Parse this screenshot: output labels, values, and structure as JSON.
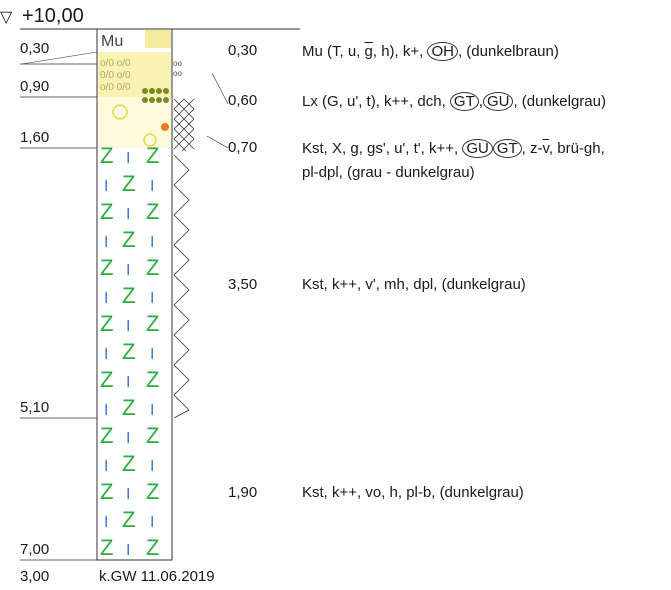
{
  "header": {
    "elevation_symbol": "▽",
    "elevation": "+10,00"
  },
  "depths": [
    "0,30",
    "0,90",
    "1,60",
    "5,10",
    "7,00"
  ],
  "thicknesses": [
    "0,30",
    "0,60",
    "0,70",
    "3,50",
    "1,90"
  ],
  "profile_label": "Mu",
  "layers": [
    {
      "parts": [
        "Mu (T, u, ",
        "g",
        ", h), k+, ",
        "OH",
        ", (dunkelbraun)"
      ]
    },
    {
      "parts": [
        "Lx (G, u', t), k++, dch, ",
        "GT",
        ",",
        "GU",
        ", (dunkelgrau)"
      ]
    },
    {
      "parts": [
        "Kst, X, g, gs', u', t', k++, ",
        "GU",
        "GT",
        ", z-",
        "v",
        ", brü-gh,"
      ],
      "line2": "pl-dpl, (grau - dunkelgrau)"
    },
    {
      "line1": "Kst, k++, v', mh, dpl, (dunkelgrau)"
    },
    {
      "line1": "Kst, k++, vo, h, pl-b, (dunkelgrau)"
    }
  ],
  "footer": {
    "total_depth": "3,00",
    "groundwater": "k.GW 11.06.2019"
  },
  "colors": {
    "z_symbol": "#2eaa3c",
    "i_symbol": "#3a7bd5",
    "fill_yellow": "#e8d84a",
    "fill_olive": "#7a8a20",
    "dot_orange": "#f07820"
  }
}
